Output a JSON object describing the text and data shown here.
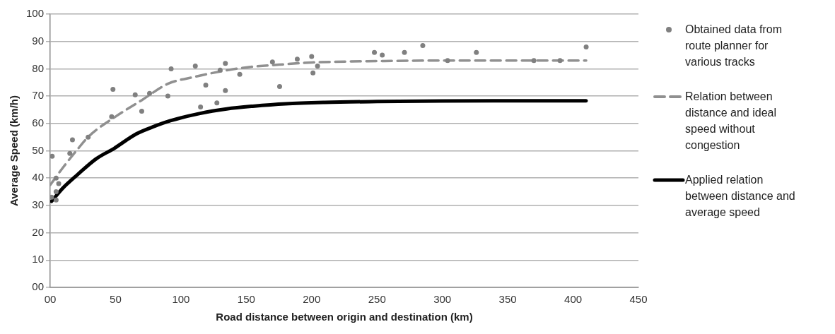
{
  "chart_data": {
    "type": "scatter",
    "xlabel": "Road distance between origin and destination (km)",
    "ylabel": "Average Speed (km/h)",
    "xlim": [
      0,
      450
    ],
    "xticks": [
      {
        "value": 0,
        "label": "00"
      },
      50,
      100,
      150,
      200,
      250,
      300,
      350,
      400,
      450
    ],
    "ylim": [
      0,
      100
    ],
    "yticks": [
      {
        "value": 0,
        "label": "00"
      },
      10,
      20,
      30,
      40,
      50,
      60,
      70,
      80,
      90,
      100
    ],
    "grid": "y",
    "legend": "right",
    "series": [
      {
        "name": "Obtained data from route planner for various tracks",
        "color": "#808080",
        "marker": "circle",
        "x": [
          1,
          1.5,
          4.5,
          6.5,
          4.5,
          4.5,
          15,
          17,
          29,
          48,
          47,
          65,
          70,
          76,
          90,
          92.5,
          111,
          115,
          119,
          127.5,
          130,
          134,
          134,
          145,
          170,
          175.5,
          189,
          200,
          201,
          204.5,
          248,
          254,
          271,
          285,
          304,
          326,
          370,
          390,
          410
        ],
        "values": [
          33,
          48,
          40,
          38,
          35,
          32,
          49,
          54,
          55,
          72.5,
          62.5,
          70.5,
          64.5,
          71,
          70,
          80,
          81,
          66,
          74,
          67.5,
          79.5,
          82,
          72,
          78,
          82.5,
          73.5,
          83.5,
          84.5,
          78.5,
          81,
          86,
          85,
          86,
          88.5,
          83,
          86,
          83,
          83,
          88
        ]
      },
      {
        "name": "Relation between distance and ideal speed without congestion",
        "type": "line",
        "color": "#909090",
        "line_style": "dashed",
        "marker": "none",
        "x": [
          0,
          10,
          20,
          30,
          50,
          70,
          90,
          110,
          130,
          150,
          175,
          200,
          250,
          300,
          410
        ],
        "values": [
          37.5,
          44,
          50,
          55.5,
          62.5,
          68.5,
          74.5,
          77,
          79,
          80.5,
          81.5,
          82.3,
          82.8,
          83,
          83
        ]
      },
      {
        "name": "Applied relation between distance and average speed",
        "type": "line",
        "color": "#000000",
        "line_style": "solid",
        "marker": "none",
        "x": [
          1,
          10,
          21,
          35,
          49,
          66,
          80,
          92,
          114,
          135,
          155,
          180,
          210,
          250,
          300,
          410
        ],
        "values": [
          31.5,
          36.5,
          41.3,
          47,
          50.9,
          56.2,
          59,
          61,
          63.6,
          65.3,
          66.3,
          67.2,
          67.7,
          68,
          68.2,
          68.3
        ]
      }
    ]
  }
}
